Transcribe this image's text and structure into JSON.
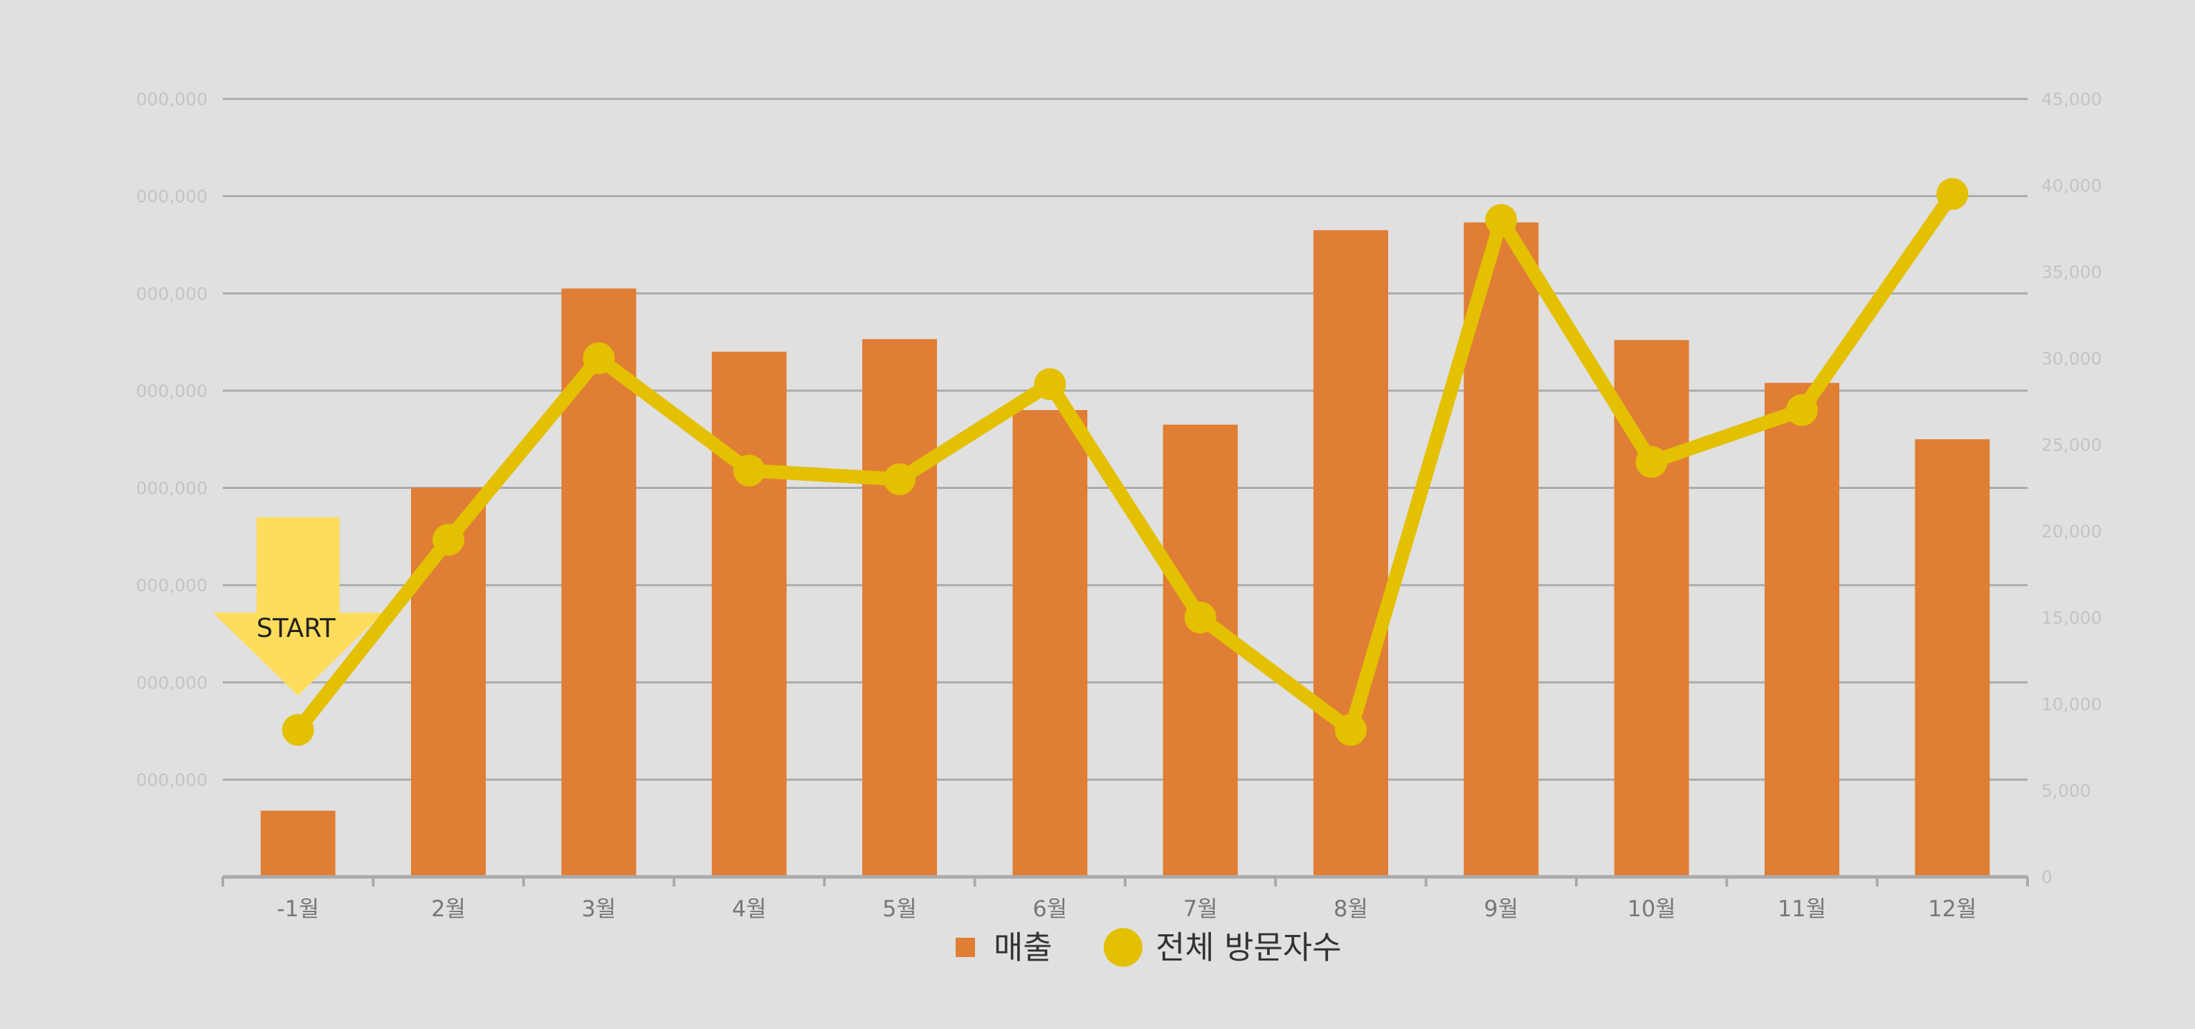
{
  "chart_data": {
    "type": "bar+line",
    "categories": [
      "-1월",
      "2월",
      "3월",
      "4월",
      "5월",
      "6월",
      "7월",
      "8월",
      "9월",
      "10월",
      "11월",
      "12월"
    ],
    "series": [
      {
        "name": "매출",
        "type": "bar",
        "axis": "left",
        "values": [
          0.68,
          4.0,
          6.05,
          5.4,
          5.53,
          4.8,
          4.65,
          6.65,
          6.73,
          5.52,
          5.08,
          4.5
        ]
      },
      {
        "name": "전체 방문자수",
        "type": "line",
        "axis": "right",
        "values": [
          8500,
          19500,
          30000,
          23500,
          23000,
          28500,
          15000,
          8500,
          38000,
          24000,
          27000,
          39500
        ]
      }
    ],
    "left_axis": {
      "ylim": [
        0,
        8
      ],
      "tick_values": [
        0,
        1,
        2,
        3,
        4,
        5,
        6,
        7,
        8
      ],
      "tick_labels": [
        "",
        "000,000",
        "000,000",
        "000,000",
        "000,000",
        "000,000",
        "000,000",
        "000,000",
        "000,000"
      ]
    },
    "right_axis": {
      "ylim": [
        0,
        45000
      ],
      "tick_values": [
        0,
        5000,
        10000,
        15000,
        20000,
        25000,
        30000,
        35000,
        40000,
        45000
      ],
      "tick_labels": [
        "0",
        "5,000",
        "10,000",
        "15,000",
        "20,000",
        "25,000",
        "30,000",
        "35,000",
        "40,000",
        "45,000"
      ]
    },
    "legend": {
      "position": "bottom-center",
      "items": [
        "매출",
        "전체 방문자수"
      ]
    },
    "annotation": {
      "text": "START",
      "category": "-1월"
    },
    "grid": true,
    "colors": {
      "background": "#e0e0e0",
      "bar": "#e07e35",
      "line": "#e3c000",
      "grid": "#aaaaaa",
      "axis_text": "#c4c4c4",
      "start_arrow": "#ffdc5c",
      "legend_text": "#333333"
    }
  }
}
